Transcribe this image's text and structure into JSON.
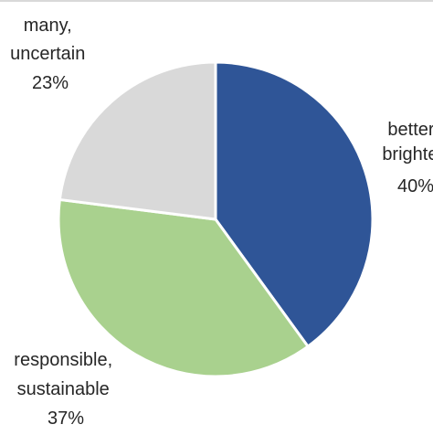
{
  "chart_data": {
    "type": "pie",
    "categories": [
      "better, brighter",
      "responsible, sustainable",
      "many, uncertain"
    ],
    "values": [
      40,
      37,
      23
    ],
    "labels": [
      {
        "name": "better, brighter",
        "lines": [
          "better,",
          "brighter"
        ],
        "percent": "40%"
      },
      {
        "name": "responsible, sustainable",
        "lines": [
          "responsible,",
          "sustainable"
        ],
        "percent": "37%"
      },
      {
        "name": "many, uncertain",
        "lines": [
          "many,",
          "uncertain"
        ],
        "percent": "23%"
      }
    ],
    "colors": [
      "#2f5597",
      "#a9d18e",
      "#d9d9d9"
    ],
    "start_angle_deg": 0,
    "direction": "clockwise",
    "title": "",
    "legend": "none"
  }
}
